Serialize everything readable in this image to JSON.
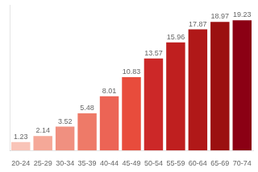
{
  "chart_data": {
    "type": "bar",
    "categories": [
      "20-24",
      "25-29",
      "30-34",
      "35-39",
      "40-44",
      "45-49",
      "50-54",
      "55-59",
      "60-64",
      "65-69",
      "70-74"
    ],
    "values": [
      1.23,
      2.14,
      3.52,
      5.48,
      8.01,
      10.83,
      13.57,
      15.96,
      17.87,
      18.97,
      19.23
    ],
    "colors": [
      "#F9C4B8",
      "#F5A898",
      "#F09080",
      "#EE7A68",
      "#EC6455",
      "#E84C3C",
      "#CC2828",
      "#BF1F1F",
      "#B01818",
      "#9B1010",
      "#8B0014"
    ],
    "ylim": [
      0,
      21.5
    ],
    "data_labels": true,
    "tick_labels": "x",
    "grid": false
  }
}
